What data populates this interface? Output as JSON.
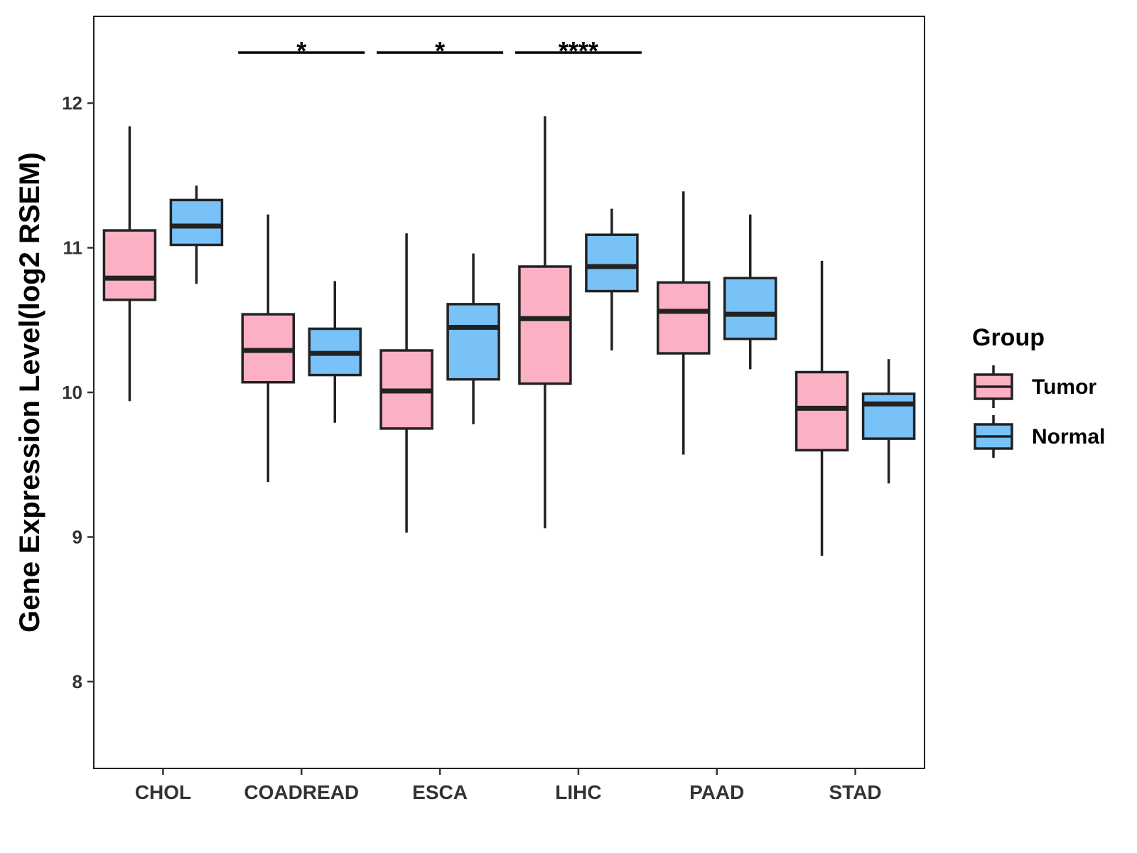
{
  "chart_data": {
    "type": "boxplot",
    "ylabel": "Gene Expression Level(log2 RSEM)",
    "xlabel": "",
    "ylim": [
      7.4,
      12.6
    ],
    "yticks": [
      8,
      9,
      10,
      11,
      12
    ],
    "categories": [
      "CHOL",
      "COADREAD",
      "ESCA",
      "LIHC",
      "PAAD",
      "STAD"
    ],
    "legend": {
      "title": "Group",
      "position": "right",
      "entries": [
        "Tumor",
        "Normal"
      ]
    },
    "colors": {
      "Tumor": "#FBB0C3",
      "Normal": "#79C2F8",
      "outline": "#222222"
    },
    "series": [
      {
        "name": "Tumor",
        "boxes": [
          {
            "category": "CHOL",
            "min": 9.94,
            "q1": 10.64,
            "median": 10.79,
            "q3": 11.12,
            "max": 11.84
          },
          {
            "category": "COADREAD",
            "min": 9.38,
            "q1": 10.07,
            "median": 10.29,
            "q3": 10.54,
            "max": 11.23
          },
          {
            "category": "ESCA",
            "min": 9.03,
            "q1": 9.75,
            "median": 10.01,
            "q3": 10.29,
            "max": 11.1
          },
          {
            "category": "LIHC",
            "min": 9.06,
            "q1": 10.06,
            "median": 10.51,
            "q3": 10.87,
            "max": 11.91
          },
          {
            "category": "PAAD",
            "min": 9.57,
            "q1": 10.27,
            "median": 10.56,
            "q3": 10.76,
            "max": 11.39
          },
          {
            "category": "STAD",
            "min": 8.87,
            "q1": 9.6,
            "median": 9.89,
            "q3": 10.14,
            "max": 10.91
          }
        ]
      },
      {
        "name": "Normal",
        "boxes": [
          {
            "category": "CHOL",
            "min": 10.75,
            "q1": 11.02,
            "median": 11.15,
            "q3": 11.33,
            "max": 11.43
          },
          {
            "category": "COADREAD",
            "min": 9.79,
            "q1": 10.12,
            "median": 10.27,
            "q3": 10.44,
            "max": 10.77
          },
          {
            "category": "ESCA",
            "min": 9.78,
            "q1": 10.09,
            "median": 10.45,
            "q3": 10.61,
            "max": 10.96
          },
          {
            "category": "LIHC",
            "min": 10.29,
            "q1": 10.7,
            "median": 10.87,
            "q3": 11.09,
            "max": 11.27
          },
          {
            "category": "PAAD",
            "min": 10.16,
            "q1": 10.37,
            "median": 10.54,
            "q3": 10.79,
            "max": 11.23
          },
          {
            "category": "STAD",
            "min": 9.37,
            "q1": 9.68,
            "median": 9.92,
            "q3": 9.99,
            "max": 10.23
          }
        ]
      }
    ],
    "significance": [
      {
        "category": "CHOL",
        "label": ""
      },
      {
        "category": "COADREAD",
        "label": "*"
      },
      {
        "category": "ESCA",
        "label": "*"
      },
      {
        "category": "LIHC",
        "label": "****"
      },
      {
        "category": "PAAD",
        "label": ""
      },
      {
        "category": "STAD",
        "label": ""
      }
    ]
  }
}
